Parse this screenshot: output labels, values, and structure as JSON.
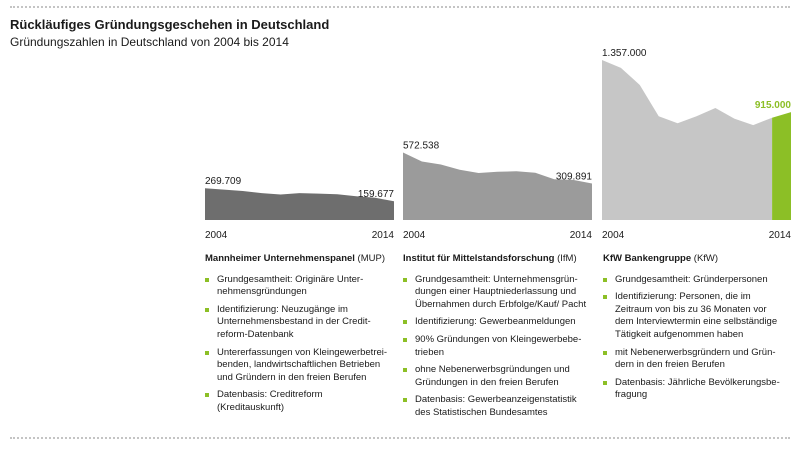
{
  "header": {
    "title": "Rückläufiges Gründungsgeschehen in Deutschland",
    "subtitle": "Gründungszahlen in Deutschland von 2004 bis 2014"
  },
  "colors": {
    "mup": "#6e6e6e",
    "ifm": "#9b9b9b",
    "kfw": "#c6c6c6",
    "accent": "#8cbf26"
  },
  "chart_data": [
    {
      "type": "area",
      "name": "Mannheimer Unternehmenspanel",
      "x": [
        2004,
        2005,
        2006,
        2007,
        2008,
        2009,
        2010,
        2011,
        2012,
        2013,
        2014
      ],
      "values": [
        269709,
        258000,
        246000,
        228000,
        216000,
        228000,
        224000,
        218000,
        202000,
        188000,
        159677
      ],
      "labels": {
        "start": "269.709",
        "end": "159.677",
        "x_start": "2004",
        "x_end": "2014"
      }
    },
    {
      "type": "area",
      "name": "Institut für Mittelstandsforschung",
      "x": [
        2004,
        2005,
        2006,
        2007,
        2008,
        2009,
        2010,
        2011,
        2012,
        2013,
        2014
      ],
      "values": [
        572538,
        496000,
        471000,
        426000,
        399000,
        410000,
        413000,
        401000,
        346000,
        340000,
        309891
      ],
      "labels": {
        "start": "572.538",
        "end": "309.891",
        "x_start": "2004",
        "x_end": "2014"
      }
    },
    {
      "type": "area",
      "name": "KfW Bankengruppe",
      "x": [
        2004,
        2005,
        2006,
        2007,
        2008,
        2009,
        2010,
        2011,
        2012,
        2013,
        2014
      ],
      "values": [
        1357000,
        1290000,
        1145000,
        880000,
        820000,
        880000,
        950000,
        860000,
        805000,
        868000,
        915000
      ],
      "highlight_from": 2013,
      "labels": {
        "start": "1.357.000",
        "end": "915.000",
        "x_start": "2004",
        "x_end": "2014"
      }
    }
  ],
  "panels": [
    {
      "title": "Mannheimer Unternehmenspanel",
      "abbr": "(MUP)",
      "items": [
        [
          "Grundgesamtheit: Originäre Unter-",
          "nehmensgründungen"
        ],
        [
          "Identifizierung: Neuzugänge im",
          "Unternehmensbestand in der Credit-",
          "reform-Datenbank"
        ],
        [
          "Untererfassungen von Kleingewerbetrei-",
          "benden, landwirtschaftlichen Betrieben",
          "und Gründern in den freien Berufen"
        ],
        [
          "Datenbasis: Creditreform",
          "(Kreditauskunft)"
        ]
      ]
    },
    {
      "title": "Institut für Mittelstandsforschung",
      "abbr": "(IfM)",
      "items": [
        [
          "Grundgesamtheit: Unternehmensgrün-",
          "dungen einer Hauptniederlassung und",
          "Übernahmen durch Erbfolge/Kauf/ Pacht"
        ],
        [
          "Identifizierung: Gewerbeanmeldungen"
        ],
        [
          "90% Gründungen von Kleingewerbebe-",
          "trieben"
        ],
        [
          "ohne Nebenerwerbsgründungen und",
          "Gründungen in den freien Berufen"
        ],
        [
          "Datenbasis: Gewerbeanzeigenstatistik",
          "des Statistischen Bundesamtes"
        ]
      ]
    },
    {
      "title": "KfW Bankengruppe",
      "abbr": "(KfW)",
      "items": [
        [
          "Grundgesamtheit: Gründerpersonen"
        ],
        [
          "Identifizierung: Personen, die im",
          "Zeitraum von bis zu 36 Monaten vor",
          "dem Interviewtermin eine selbständige",
          "Tätigkeit aufgenommen haben"
        ],
        [
          "mit Nebenerwerbsgründern und Grün-",
          "dern in den freien Berufen"
        ],
        [
          "Datenbasis: Jährliche Bevölkerungsbe-",
          "fragung"
        ]
      ]
    }
  ]
}
